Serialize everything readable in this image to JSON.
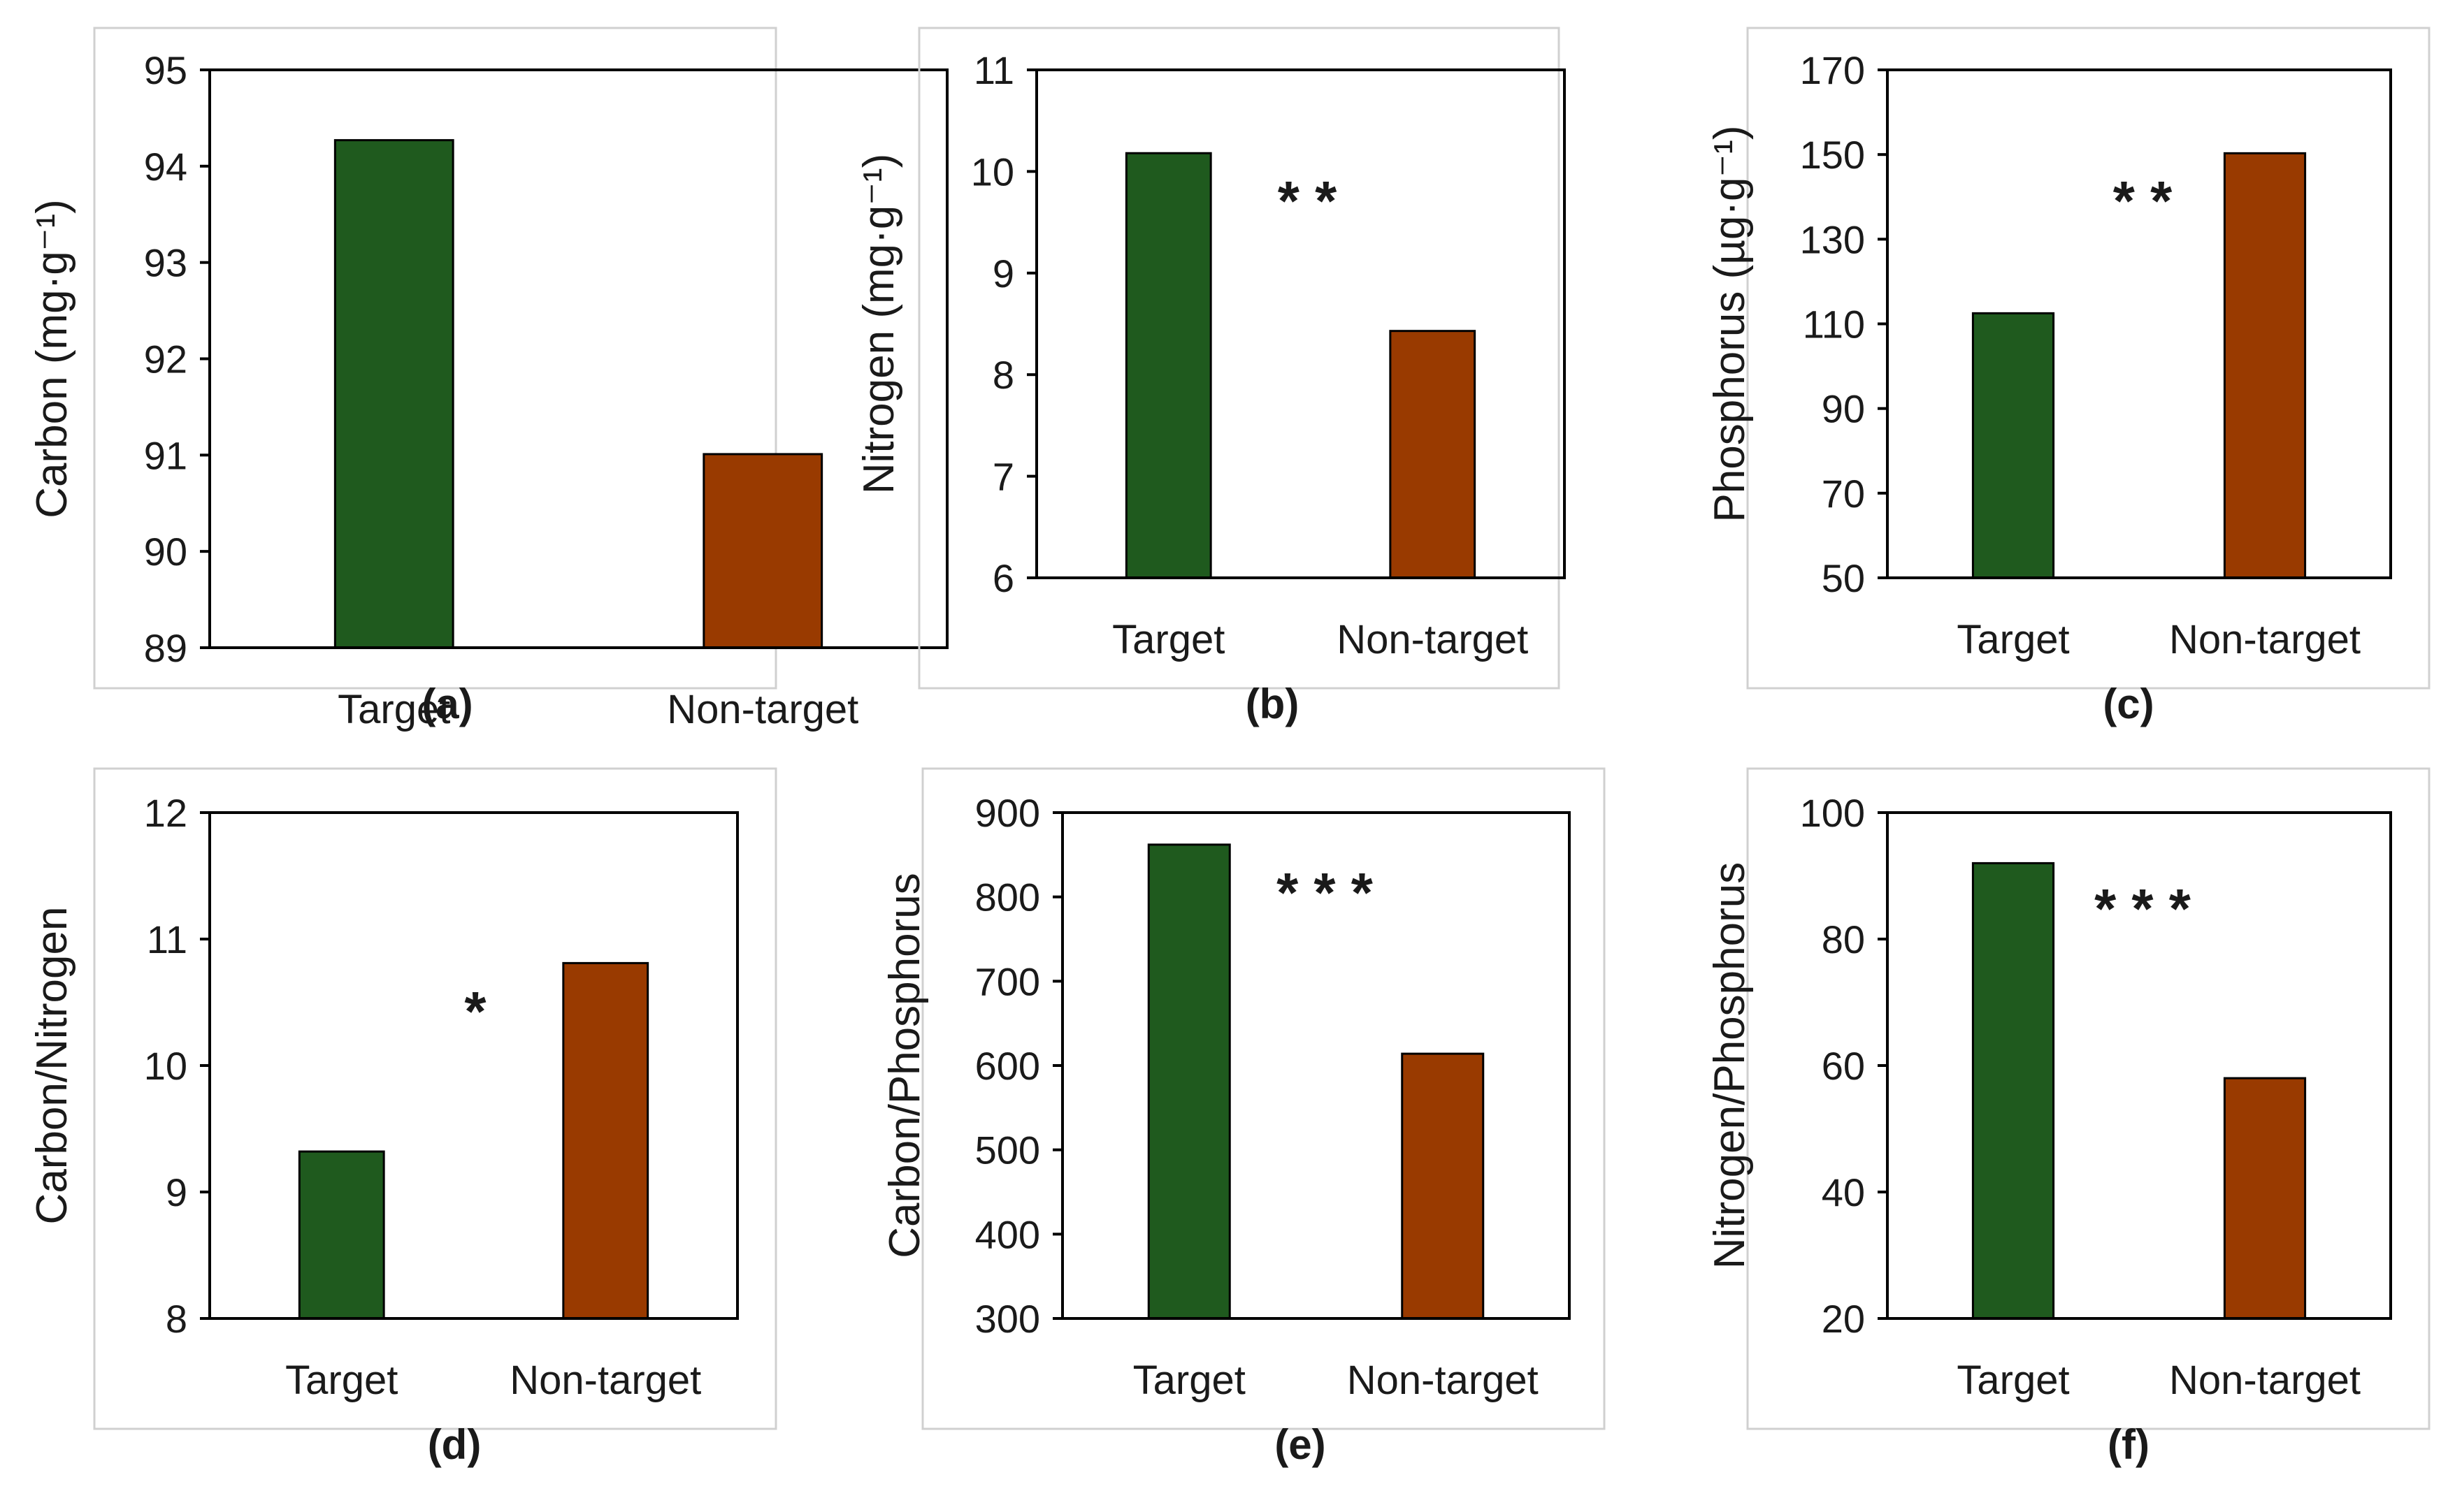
{
  "colors": {
    "target": "#1f5a1e",
    "non_target": "#993a00"
  },
  "chart_data": [
    {
      "type": "bar",
      "panel_label": "(a)",
      "title": "",
      "ylabel": "Carbon (mg·g⁻¹)",
      "xlabel": "",
      "categories": [
        "Target",
        "Non-target"
      ],
      "values": [
        94.27,
        91.01
      ],
      "ylim": [
        89,
        95
      ],
      "yticks": [
        89,
        90,
        91,
        92,
        93,
        94,
        95
      ],
      "significance": ""
    },
    {
      "type": "bar",
      "panel_label": "(b)",
      "title": "",
      "ylabel": "Nitrogen (mg·g⁻¹)",
      "xlabel": "",
      "categories": [
        "Target",
        "Non-target"
      ],
      "values": [
        10.18,
        8.43
      ],
      "ylim": [
        6,
        11
      ],
      "yticks": [
        6,
        7,
        8,
        9,
        10,
        11
      ],
      "significance": "**"
    },
    {
      "type": "bar",
      "panel_label": "(c)",
      "title": "",
      "ylabel": "Phosphorus (µg·g⁻¹)",
      "xlabel": "",
      "categories": [
        "Target",
        "Non-target"
      ],
      "values": [
        112.5,
        150.3
      ],
      "ylim": [
        50,
        170
      ],
      "yticks": [
        50,
        70,
        90,
        110,
        130,
        150,
        170
      ],
      "significance": "**"
    },
    {
      "type": "bar",
      "panel_label": "(d)",
      "title": "",
      "ylabel": "Carbon/Nitrogen",
      "xlabel": "",
      "categories": [
        "Target",
        "Non-target"
      ],
      "values": [
        9.32,
        10.81
      ],
      "ylim": [
        8,
        12
      ],
      "yticks": [
        8,
        9,
        10,
        11,
        12
      ],
      "significance": "*"
    },
    {
      "type": "bar",
      "panel_label": "(e)",
      "title": "",
      "ylabel": "Carbon/Phosphorus",
      "xlabel": "",
      "categories": [
        "Target",
        "Non-target"
      ],
      "values": [
        862,
        614
      ],
      "ylim": [
        300,
        900
      ],
      "yticks": [
        300,
        400,
        500,
        600,
        700,
        800,
        900
      ],
      "significance": "***"
    },
    {
      "type": "bar",
      "panel_label": "(f)",
      "title": "",
      "ylabel": "Nitrogen/Phosphorus",
      "xlabel": "",
      "categories": [
        "Target",
        "Non-target"
      ],
      "values": [
        92.0,
        58.0
      ],
      "ylim": [
        20,
        100
      ],
      "yticks": [
        20,
        40,
        60,
        80,
        100
      ],
      "significance": "***"
    }
  ]
}
